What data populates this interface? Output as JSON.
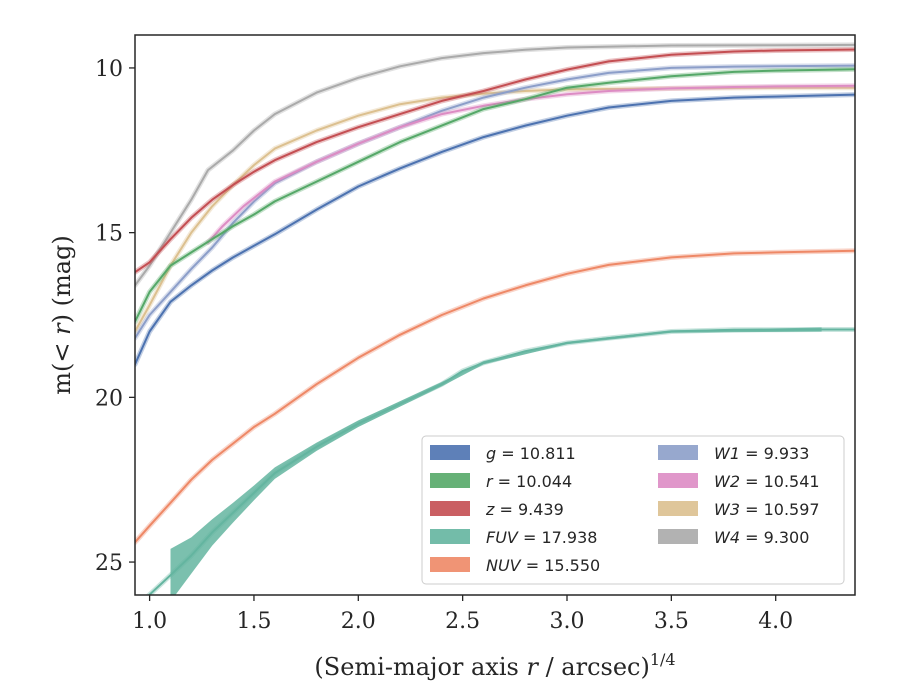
{
  "chart_data": {
    "type": "line",
    "xlabel_main": "(Semi-major axis ",
    "xlabel_var": "r",
    "xlabel_rest": " / arcsec)",
    "xlabel_sup": "1/4",
    "ylabel_pre": "m(< ",
    "ylabel_var": "r",
    "ylabel_post": ") (mag)",
    "xlim": [
      0.93,
      4.38
    ],
    "ylim": [
      26.0,
      9.0
    ],
    "y_inverted": true,
    "xticks": [
      1.0,
      1.5,
      2.0,
      2.5,
      3.0,
      3.5,
      4.0
    ],
    "xtick_labels": [
      "1.0",
      "1.5",
      "2.0",
      "2.5",
      "3.0",
      "3.5",
      "4.0"
    ],
    "yticks": [
      10,
      15,
      20,
      25
    ],
    "ytick_labels": [
      "10",
      "15",
      "20",
      "25"
    ],
    "grid": false,
    "legend_position": "lower-right",
    "series": [
      {
        "name": "g",
        "legend_label": "g = 10.811",
        "color": "#4c72b0",
        "x": [
          0.93,
          1.0,
          1.1,
          1.2,
          1.3,
          1.4,
          1.5,
          1.6,
          1.8,
          2.0,
          2.2,
          2.4,
          2.6,
          2.8,
          3.0,
          3.2,
          3.5,
          3.8,
          4.0,
          4.38
        ],
        "y": [
          19.0,
          18.0,
          17.1,
          16.6,
          16.15,
          15.75,
          15.4,
          15.05,
          14.3,
          13.6,
          13.05,
          12.55,
          12.1,
          11.75,
          11.45,
          11.2,
          11.0,
          10.9,
          10.87,
          10.81
        ],
        "upper": [
          0.0
        ],
        "lower": [
          0.0
        ]
      },
      {
        "name": "r",
        "legend_label": "r = 10.044",
        "color": "#55a868",
        "x": [
          0.93,
          1.0,
          1.1,
          1.2,
          1.3,
          1.4,
          1.5,
          1.6,
          1.8,
          2.0,
          2.2,
          2.4,
          2.6,
          2.8,
          3.0,
          3.2,
          3.5,
          3.8,
          4.0,
          4.38
        ],
        "y": [
          17.7,
          16.8,
          16.0,
          15.6,
          15.2,
          14.8,
          14.45,
          14.05,
          13.45,
          12.85,
          12.25,
          11.75,
          11.25,
          10.95,
          10.6,
          10.45,
          10.25,
          10.12,
          10.08,
          10.04
        ]
      },
      {
        "name": "z",
        "legend_label": "z = 9.439",
        "color": "#c44e52",
        "x": [
          0.93,
          1.0,
          1.1,
          1.2,
          1.3,
          1.4,
          1.5,
          1.6,
          1.8,
          2.0,
          2.2,
          2.4,
          2.6,
          2.8,
          3.0,
          3.2,
          3.5,
          3.8,
          4.0,
          4.38
        ],
        "y": [
          16.2,
          15.9,
          15.2,
          14.55,
          14.0,
          13.55,
          13.15,
          12.8,
          12.25,
          11.8,
          11.4,
          11.0,
          10.7,
          10.35,
          10.05,
          9.8,
          9.6,
          9.5,
          9.47,
          9.44
        ]
      },
      {
        "name": "FUV",
        "legend_label": "FUV = 17.938",
        "color": "#64b5a0",
        "x": [
          0.93,
          1.1,
          1.2,
          1.3,
          1.4,
          1.5,
          1.6,
          1.8,
          2.0,
          2.2,
          2.4,
          2.5,
          2.6,
          2.8,
          3.0,
          3.2,
          3.5,
          3.8,
          4.0,
          4.22,
          4.38
        ],
        "y": [
          26.4,
          25.4,
          24.8,
          24.1,
          23.5,
          22.9,
          22.3,
          21.5,
          20.8,
          20.2,
          19.6,
          19.2,
          18.95,
          18.6,
          18.35,
          18.2,
          18.0,
          17.95,
          17.95,
          17.94,
          17.94
        ],
        "band_x": [
          1.1,
          1.2,
          1.3,
          1.4,
          1.5,
          1.6,
          1.8,
          2.0,
          2.2,
          2.4,
          2.6,
          3.0,
          3.5,
          4.22
        ],
        "band_w": [
          1.6,
          1.1,
          0.8,
          0.6,
          0.45,
          0.35,
          0.25,
          0.2,
          0.16,
          0.13,
          0.1,
          0.08,
          0.08,
          0.12
        ]
      },
      {
        "name": "NUV",
        "legend_label": "NUV = 15.550",
        "color": "#ee8866",
        "x": [
          0.93,
          1.0,
          1.1,
          1.2,
          1.3,
          1.4,
          1.5,
          1.6,
          1.8,
          2.0,
          2.2,
          2.4,
          2.6,
          2.8,
          3.0,
          3.2,
          3.5,
          3.8,
          4.0,
          4.38
        ],
        "y": [
          24.4,
          23.9,
          23.2,
          22.5,
          21.9,
          21.4,
          20.9,
          20.5,
          19.6,
          18.8,
          18.1,
          17.5,
          17.0,
          16.6,
          16.25,
          15.98,
          15.75,
          15.63,
          15.6,
          15.55
        ]
      },
      {
        "name": "W1",
        "legend_label": "W1 = 9.933",
        "color": "#8c9ec9",
        "x": [
          0.93,
          1.0,
          1.1,
          1.2,
          1.3,
          1.4,
          1.5,
          1.6,
          1.8,
          2.0,
          2.2,
          2.4,
          2.6,
          2.8,
          3.0,
          3.2,
          3.5,
          3.8,
          4.0,
          4.38
        ],
        "y": [
          18.2,
          17.5,
          16.8,
          16.1,
          15.45,
          14.7,
          14.05,
          13.5,
          12.85,
          12.3,
          11.8,
          11.3,
          10.9,
          10.6,
          10.35,
          10.15,
          10.0,
          9.96,
          9.95,
          9.93
        ]
      },
      {
        "name": "W2",
        "legend_label": "W2 = 10.541",
        "color": "#dd8cc4",
        "x": [
          1.28,
          1.35,
          1.45,
          1.55,
          1.6,
          1.8,
          2.0,
          2.2,
          2.4,
          2.6,
          2.8,
          3.0,
          3.2,
          3.5,
          3.8,
          4.0,
          4.38
        ],
        "y": [
          15.3,
          14.8,
          14.2,
          13.7,
          13.45,
          12.85,
          12.3,
          11.8,
          11.4,
          11.15,
          10.95,
          10.8,
          10.7,
          10.62,
          10.58,
          10.56,
          10.54
        ]
      },
      {
        "name": "W3",
        "legend_label": "W3 = 10.597",
        "color": "#dcc08f",
        "x": [
          0.93,
          1.0,
          1.1,
          1.2,
          1.3,
          1.4,
          1.5,
          1.6,
          1.8,
          2.0,
          2.2,
          2.4,
          2.6,
          2.8,
          3.0,
          3.5,
          4.0,
          4.38
        ],
        "y": [
          18.0,
          17.2,
          16.0,
          15.0,
          14.2,
          13.55,
          12.95,
          12.45,
          11.9,
          11.45,
          11.1,
          10.9,
          10.78,
          10.7,
          10.65,
          10.62,
          10.6,
          10.6
        ]
      },
      {
        "name": "W4",
        "legend_label": "W4 = 9.300",
        "color": "#aaaaaa",
        "x": [
          0.93,
          1.0,
          1.1,
          1.2,
          1.28,
          1.4,
          1.5,
          1.6,
          1.8,
          2.0,
          2.2,
          2.4,
          2.6,
          2.8,
          3.0,
          3.5,
          4.0,
          4.38
        ],
        "y": [
          16.6,
          16.0,
          15.0,
          14.0,
          13.1,
          12.5,
          11.9,
          11.4,
          10.75,
          10.3,
          9.95,
          9.7,
          9.55,
          9.45,
          9.38,
          9.32,
          9.31,
          9.3
        ]
      }
    ],
    "legend_cols": [
      [
        "g",
        "r",
        "z",
        "FUV",
        "NUV"
      ],
      [
        "W1",
        "W2",
        "W3",
        "W4"
      ]
    ]
  }
}
